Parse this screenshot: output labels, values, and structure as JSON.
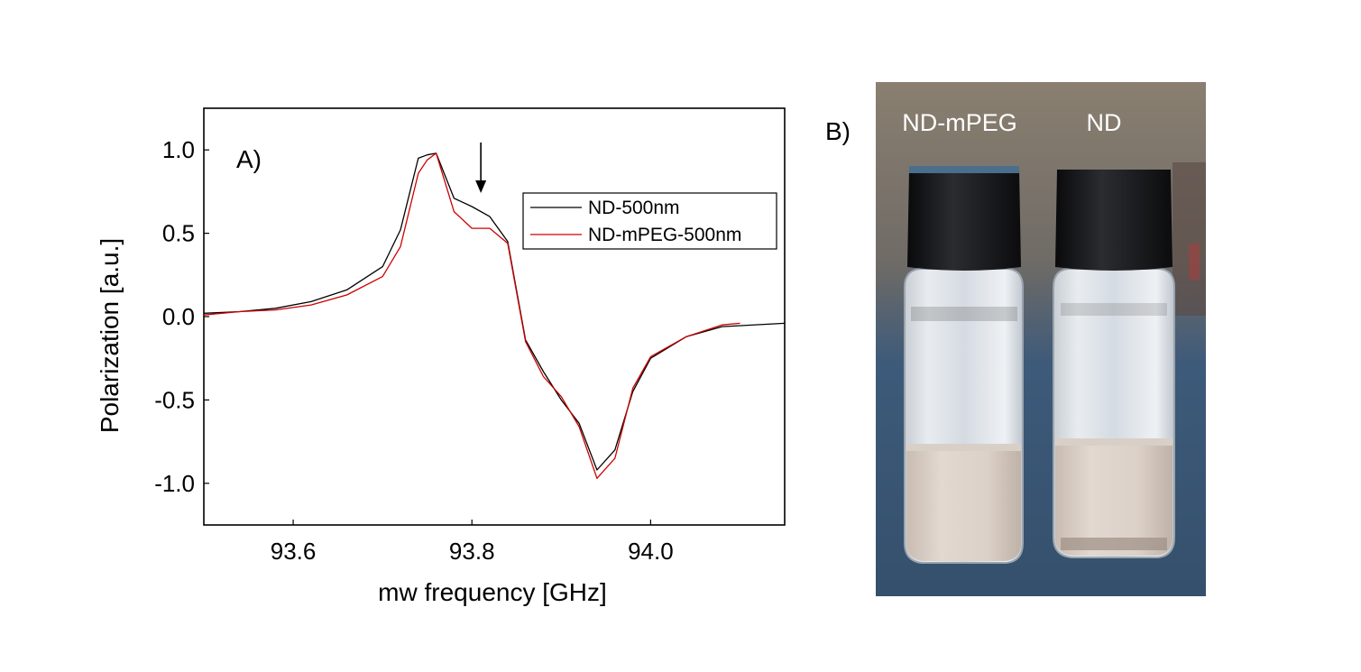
{
  "chart_data": {
    "type": "line",
    "panel_label": "A)",
    "xlabel": "mw frequency [GHz]",
    "ylabel": "Polarization [a.u.]",
    "xlim": [
      93.5,
      94.15
    ],
    "ylim": [
      -1.25,
      1.25
    ],
    "x_ticks": [
      93.6,
      93.8,
      94.0
    ],
    "x_tick_labels": [
      "93.6",
      "93.8",
      "94.0"
    ],
    "y_ticks": [
      1.0,
      0.5,
      0.0,
      -0.5,
      -1.0
    ],
    "y_tick_labels": [
      "1.0",
      "0.5",
      "0.0",
      "-0.5",
      "-1.0"
    ],
    "annotation": "arrow at 93.81 GHz",
    "annotation_x": 93.81,
    "legend_position": "top-right",
    "series": [
      {
        "name": "ND-500nm",
        "color": "#000000",
        "x": [
          93.5,
          93.54,
          93.58,
          93.62,
          93.66,
          93.7,
          93.72,
          93.74,
          93.75,
          93.76,
          93.78,
          93.8,
          93.82,
          93.84,
          93.86,
          93.88,
          93.9,
          93.92,
          93.94,
          93.96,
          93.98,
          94.0,
          94.04,
          94.08,
          94.15
        ],
        "y": [
          0.02,
          0.03,
          0.05,
          0.09,
          0.16,
          0.3,
          0.52,
          0.95,
          0.97,
          0.98,
          0.71,
          0.66,
          0.6,
          0.45,
          -0.14,
          -0.33,
          -0.5,
          -0.64,
          -0.92,
          -0.8,
          -0.45,
          -0.25,
          -0.12,
          -0.06,
          -0.04
        ]
      },
      {
        "name": "ND-mPEG-500nm",
        "color": "#cc0000",
        "x": [
          93.5,
          93.54,
          93.58,
          93.62,
          93.66,
          93.7,
          93.72,
          93.74,
          93.75,
          93.76,
          93.78,
          93.8,
          93.82,
          93.84,
          93.86,
          93.88,
          93.9,
          93.92,
          93.94,
          93.96,
          93.98,
          94.0,
          94.04,
          94.08,
          94.1
        ],
        "y": [
          0.01,
          0.03,
          0.04,
          0.07,
          0.13,
          0.24,
          0.42,
          0.86,
          0.94,
          0.98,
          0.63,
          0.53,
          0.53,
          0.44,
          -0.15,
          -0.36,
          -0.48,
          -0.66,
          -0.97,
          -0.85,
          -0.43,
          -0.24,
          -0.12,
          -0.05,
          -0.04
        ]
      }
    ]
  },
  "photo": {
    "panel_label": "B)",
    "vial_labels": [
      "ND-mPEG",
      "ND"
    ]
  },
  "colors": {
    "axis": "#000000",
    "series_black": "#000000",
    "series_red": "#cc0000"
  }
}
